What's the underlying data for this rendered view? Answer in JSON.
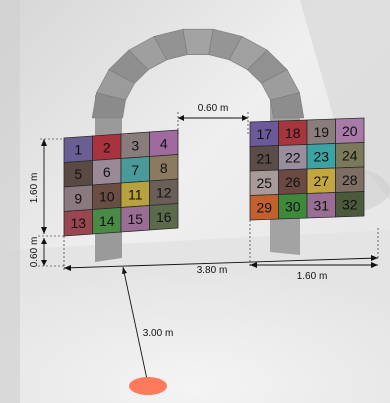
{
  "dimensions": {
    "gap_width": "0.60 m",
    "panel_height": "1.60 m",
    "panel_elevation": "0.60 m",
    "total_width": "3.80 m",
    "panel_width": "1.60 m",
    "viewing_distance": "3.00 m"
  },
  "left_panel": {
    "labels": [
      "1",
      "2",
      "3",
      "4",
      "5",
      "6",
      "7",
      "8",
      "9",
      "10",
      "11",
      "12",
      "13",
      "14",
      "15",
      "16"
    ],
    "colors": [
      "#6a5f94",
      "#a8323e",
      "#8a7c7a",
      "#9e6aa0",
      "#5a4a44",
      "#9a8a98",
      "#4a9a9a",
      "#8a7a60",
      "#8a7a80",
      "#6a4e44",
      "#b8a240",
      "#6a5e58",
      "#9a4650",
      "#4a8a44",
      "#9a6e94",
      "#5a6a4a"
    ]
  },
  "right_panel": {
    "labels": [
      "17",
      "18",
      "19",
      "20",
      "21",
      "22",
      "23",
      "24",
      "25",
      "26",
      "27",
      "28",
      "29",
      "30",
      "31",
      "32"
    ],
    "colors": [
      "#6a5a9a",
      "#a8343e",
      "#8a7e7c",
      "#a87aa8",
      "#5a4c46",
      "#9a8e9e",
      "#3aa4a4",
      "#7a7a5a",
      "#a89a98",
      "#6a4a42",
      "#c4a640",
      "#7e6e64",
      "#c2602e",
      "#3e8a3a",
      "#9a6e94",
      "#4a5a3a"
    ]
  },
  "viewer_marker_color": "#ff7a5a"
}
